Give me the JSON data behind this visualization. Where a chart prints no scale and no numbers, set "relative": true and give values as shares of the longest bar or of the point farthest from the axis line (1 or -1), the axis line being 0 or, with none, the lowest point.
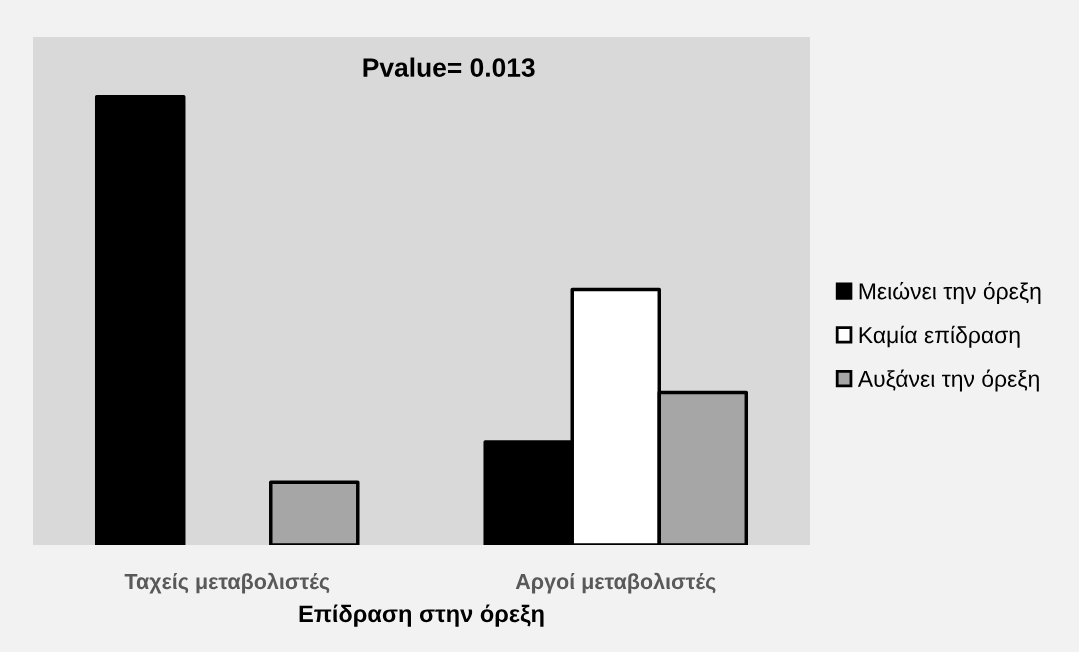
{
  "chart_data": {
    "type": "bar",
    "title": "Pvalue= 0.013",
    "xlabel": "Επίδραση στην όρεξη",
    "relative": true,
    "categories": [
      "Ταχείς μεταβολιστές",
      "Αργοί μεταβολιστές"
    ],
    "series": [
      {
        "name": "Μειώνει την όρεξη",
        "color": "#000000",
        "values": [
          1,
          0.23
        ]
      },
      {
        "name": "Καμία επίδραση",
        "color": "#ffffff",
        "values": [
          null,
          0.57
        ]
      },
      {
        "name": "Αυξάνει την όρεξη",
        "color": "#a6a6a6",
        "values": [
          0.14,
          0.34
        ]
      }
    ],
    "grid": false,
    "legend": "right"
  }
}
